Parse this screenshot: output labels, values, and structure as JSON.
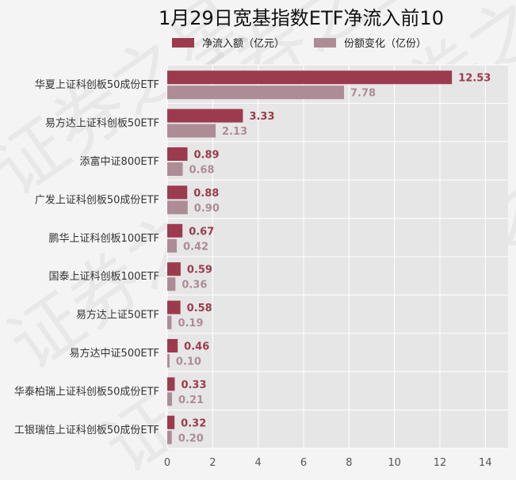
{
  "chart_data": {
    "type": "bar",
    "orientation": "horizontal",
    "title": "1月29日宽基指数ETF净流入前10",
    "categories": [
      "华夏上证科创板50成份ETF",
      "易方达上证科创板50ETF",
      "添富中证800ETF",
      "广发上证科创板50成份ETF",
      "鹏华上证科创板100ETF",
      "国泰上证科创板100ETF",
      "易方达上证50ETF",
      "易方达中证500ETF",
      "华泰柏瑞上证科创板50成份ETF",
      "工银瑞信上证科创板50成份ETF"
    ],
    "series": [
      {
        "name": "净流入额（亿元）",
        "color": "#9c3b4d",
        "values": [
          12.53,
          3.33,
          0.89,
          0.88,
          0.67,
          0.59,
          0.58,
          0.46,
          0.33,
          0.32
        ],
        "labels": [
          "12.53",
          "3.33",
          "0.89",
          "0.88",
          "0.67",
          "0.59",
          "0.58",
          "0.46",
          "0.33",
          "0.32"
        ]
      },
      {
        "name": "份额变化（亿份）",
        "color": "#ad8c95",
        "values": [
          7.78,
          2.13,
          0.68,
          0.9,
          0.42,
          0.36,
          0.19,
          0.1,
          0.21,
          0.2
        ],
        "labels": [
          "7.78",
          "2.13",
          "0.68",
          "0.90",
          "0.42",
          "0.36",
          "0.19",
          "0.10",
          "0.21",
          "0.20"
        ]
      }
    ],
    "x_ticks": [
      "0",
      "2",
      "4",
      "6",
      "8",
      "10",
      "12",
      "14"
    ],
    "xlim": [
      0,
      15
    ],
    "grid": true,
    "legend_position": "top-center",
    "watermark": "证券之星"
  }
}
